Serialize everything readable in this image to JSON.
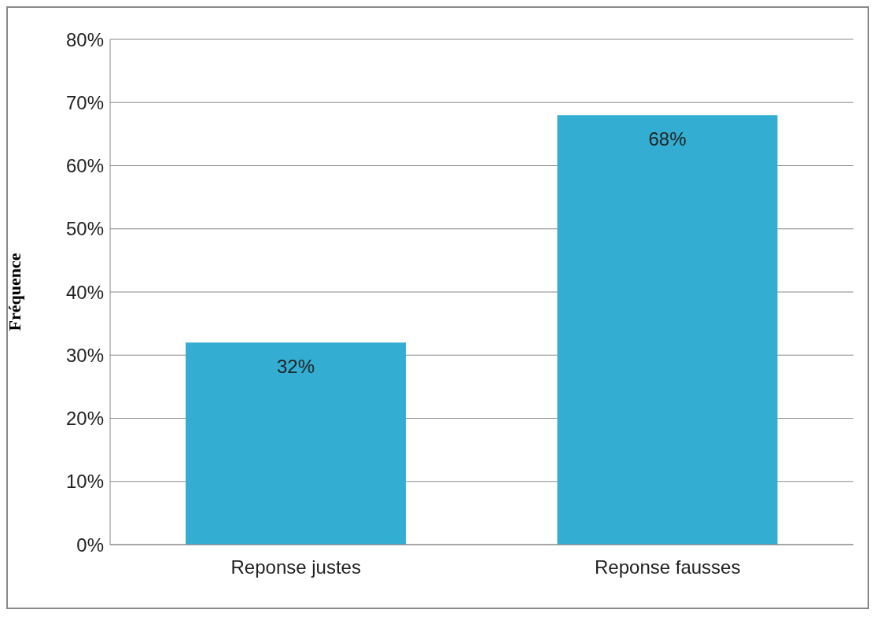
{
  "chart_data": {
    "type": "bar",
    "ylabel": "Fréquence",
    "categories": [
      "Reponse justes",
      "Reponse fausses"
    ],
    "values": [
      32,
      68
    ],
    "color": "#33aed2",
    "value_labels": [
      "32%",
      "68%"
    ],
    "ylim": [
      0,
      80
    ],
    "yticks": [
      {
        "value": 0,
        "label": "0%"
      },
      {
        "value": 10,
        "label": "10%"
      },
      {
        "value": 20,
        "label": "20%"
      },
      {
        "value": 30,
        "label": "30%"
      },
      {
        "value": 40,
        "label": "40%"
      },
      {
        "value": 50,
        "label": "50%"
      },
      {
        "value": 60,
        "label": "60%"
      },
      {
        "value": 70,
        "label": "70%"
      },
      {
        "value": 80,
        "label": "80%"
      }
    ],
    "grid": "y",
    "legend": false
  }
}
